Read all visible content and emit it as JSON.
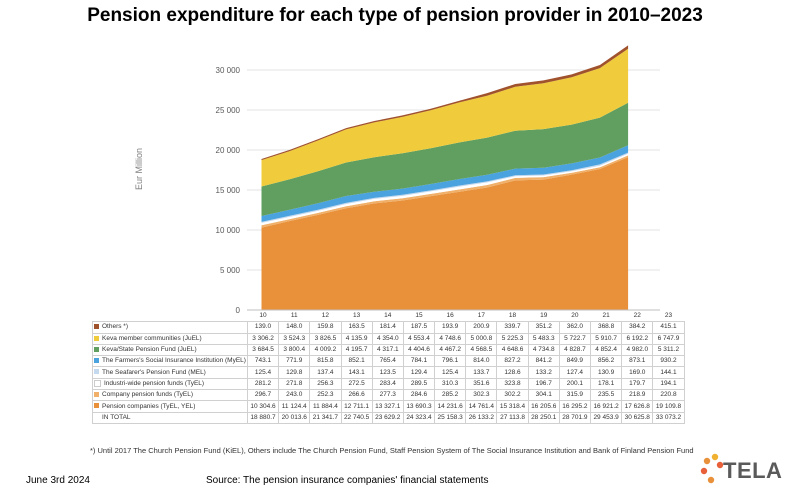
{
  "title": "Pension expenditure for each type of pension provider in 2010–2023",
  "footnote": "*) Until 2017 The Church Pension Fund (KiEL), Others include The Church Pension Fund, Staff Pension System of The Social Insurance Institution and Bank of Finland Pension Fund",
  "date": "June 3rd 2024",
  "source": "Source: The pension insurance companies' financial statements",
  "logo": "TELA",
  "colors": {
    "pension_companies": "#e8913a",
    "company_funds": "#f0b06a",
    "industry_wide": "#ffffff",
    "seafarers": "#c5d9ee",
    "farmers": "#4aa3df",
    "state": "#609f5f",
    "keva_members": "#f0cc3c",
    "others": "#a0522d"
  },
  "chart_data": {
    "type": "area",
    "stacked": true,
    "title": "Pension expenditure for each type of pension provider in 2010–2023",
    "ylabel": "Eur Million",
    "xlabel": "",
    "ylim": [
      0,
      33000
    ],
    "yticks": [
      "0",
      "5 000",
      "10 000",
      "15 000",
      "20 000",
      "25 000",
      "30 000"
    ],
    "ytick_values": [
      0,
      5000,
      10000,
      15000,
      20000,
      25000,
      30000
    ],
    "categories": [
      "10",
      "11",
      "12",
      "13",
      "14",
      "15",
      "16",
      "17",
      "18",
      "19",
      "20",
      "21",
      "22",
      "23"
    ],
    "series": [
      {
        "name": "Pension companies (TyEL, YEL)",
        "color_key": "pension_companies",
        "labels": [
          "10 304.6",
          "11 124.4",
          "11 884.4",
          "12 711.1",
          "13 327.1",
          "13 690.3",
          "14 231.6",
          "14 761.4",
          "15 318.4",
          "16 205.6",
          "16 295.2",
          "16 921.2",
          "17 626.8",
          "19 109.8"
        ],
        "values": [
          10304.6,
          11124.4,
          11884.4,
          12711.1,
          13327.1,
          13690.3,
          14231.6,
          14761.4,
          15318.4,
          16205.6,
          16295.2,
          16921.2,
          17626.8,
          19109.8
        ]
      },
      {
        "name": "Company pension funds (TyEL)",
        "color_key": "company_funds",
        "labels": [
          "296.7",
          "243.0",
          "252.3",
          "266.6",
          "277.3",
          "284.6",
          "285.2",
          "302.3",
          "302.2",
          "304.1",
          "315.9",
          "235.5",
          "218.9",
          "220.8"
        ],
        "values": [
          296.7,
          243.0,
          252.3,
          266.6,
          277.3,
          284.6,
          285.2,
          302.3,
          302.2,
          304.1,
          315.9,
          235.5,
          218.9,
          220.8
        ]
      },
      {
        "name": "Industri-wide pension funds (TyEL)",
        "color_key": "industry_wide",
        "labels": [
          "281.2",
          "271.8",
          "256.3",
          "272.5",
          "283.4",
          "289.5",
          "310.3",
          "351.6",
          "323.8",
          "196.7",
          "200.1",
          "178.1",
          "179.7",
          "194.1"
        ],
        "values": [
          281.2,
          271.8,
          256.3,
          272.5,
          283.4,
          289.5,
          310.3,
          351.6,
          323.8,
          196.7,
          200.1,
          178.1,
          179.7,
          194.1
        ]
      },
      {
        "name": "The Seafarer's Pension Fund (MEL)",
        "color_key": "seafarers",
        "labels": [
          "125.4",
          "129.8",
          "137.4",
          "143.1",
          "123.5",
          "129.4",
          "125.4",
          "133.7",
          "128.6",
          "133.2",
          "127.4",
          "130.9",
          "169.0",
          "144.1"
        ],
        "values": [
          125.4,
          129.8,
          137.4,
          143.1,
          123.5,
          129.4,
          125.4,
          133.7,
          128.6,
          133.2,
          127.4,
          130.9,
          169.0,
          144.1
        ]
      },
      {
        "name": "The Farmers's Social Insurance Institution (MyEL)",
        "color_key": "farmers",
        "labels": [
          "743.1",
          "771.9",
          "815.8",
          "852.1",
          "765.4",
          "784.1",
          "796.1",
          "814.0",
          "827.2",
          "841.2",
          "849.9",
          "856.2",
          "873.1",
          "930.2"
        ],
        "values": [
          743.1,
          771.9,
          815.8,
          852.1,
          765.4,
          784.1,
          796.1,
          814.0,
          827.2,
          841.2,
          849.9,
          856.2,
          873.1,
          930.2
        ]
      },
      {
        "name": "Keva/State Pension Fund (JuEL)",
        "color_key": "state",
        "labels": [
          "3 684.5",
          "3 800.4",
          "4 009.2",
          "4 195.7",
          "4 317.1",
          "4 404.6",
          "4 467.2",
          "4 568.5",
          "4 648.6",
          "4 734.8",
          "4 828.7",
          "4 852.4",
          "4 982.0",
          "5 311.2"
        ],
        "values": [
          3684.5,
          3800.4,
          4009.2,
          4195.7,
          4317.1,
          4404.6,
          4467.2,
          4568.5,
          4648.6,
          4734.8,
          4828.7,
          4852.4,
          4982.0,
          5311.2
        ]
      },
      {
        "name": "Keva member communities (JuEL)",
        "color_key": "keva_members",
        "labels": [
          "3 306.2",
          "3 524.3",
          "3 826.5",
          "4 135.9",
          "4 354.0",
          "4 553.4",
          "4 748.6",
          "5 000.8",
          "5 225.3",
          "5 483.3",
          "5 722.7",
          "5 910.7",
          "6 192.2",
          "6 747.9"
        ],
        "values": [
          3306.2,
          3524.3,
          3826.5,
          4135.9,
          4354.0,
          4553.4,
          4748.6,
          5000.8,
          5225.3,
          5483.3,
          5722.7,
          5910.7,
          6192.2,
          6747.9
        ]
      },
      {
        "name": "Others *)",
        "color_key": "others",
        "labels": [
          "139.0",
          "148.0",
          "159.8",
          "163.5",
          "181.4",
          "187.5",
          "193.9",
          "200.9",
          "339.7",
          "351.2",
          "362.0",
          "368.8",
          "384.2",
          "415.1"
        ],
        "values": [
          139.0,
          148.0,
          159.8,
          163.5,
          181.4,
          187.5,
          193.9,
          200.9,
          339.7,
          351.2,
          362.0,
          368.8,
          384.2,
          415.1
        ]
      }
    ],
    "total": {
      "name": "IN TOTAL",
      "labels": [
        "18 880.7",
        "20 013.6",
        "21 341.7",
        "22 740.5",
        "23 629.2",
        "24 323.4",
        "25 158.3",
        "26 133.2",
        "27 113.8",
        "28 250.1",
        "28 701.9",
        "29 453.9",
        "30 625.8",
        "33 073.2"
      ]
    },
    "table_order": [
      "Others *)",
      "Keva member communities (JuEL)",
      "Keva/State Pension Fund (JuEL)",
      "The Farmers's Social Insurance Institution (MyEL)",
      "The Seafarer's Pension Fund (MEL)",
      "Industri-wide pension funds (TyEL)",
      "Company pension funds (TyEL)",
      "Pension companies (TyEL, YEL)"
    ],
    "grid": true,
    "legend": "data table below chart"
  }
}
